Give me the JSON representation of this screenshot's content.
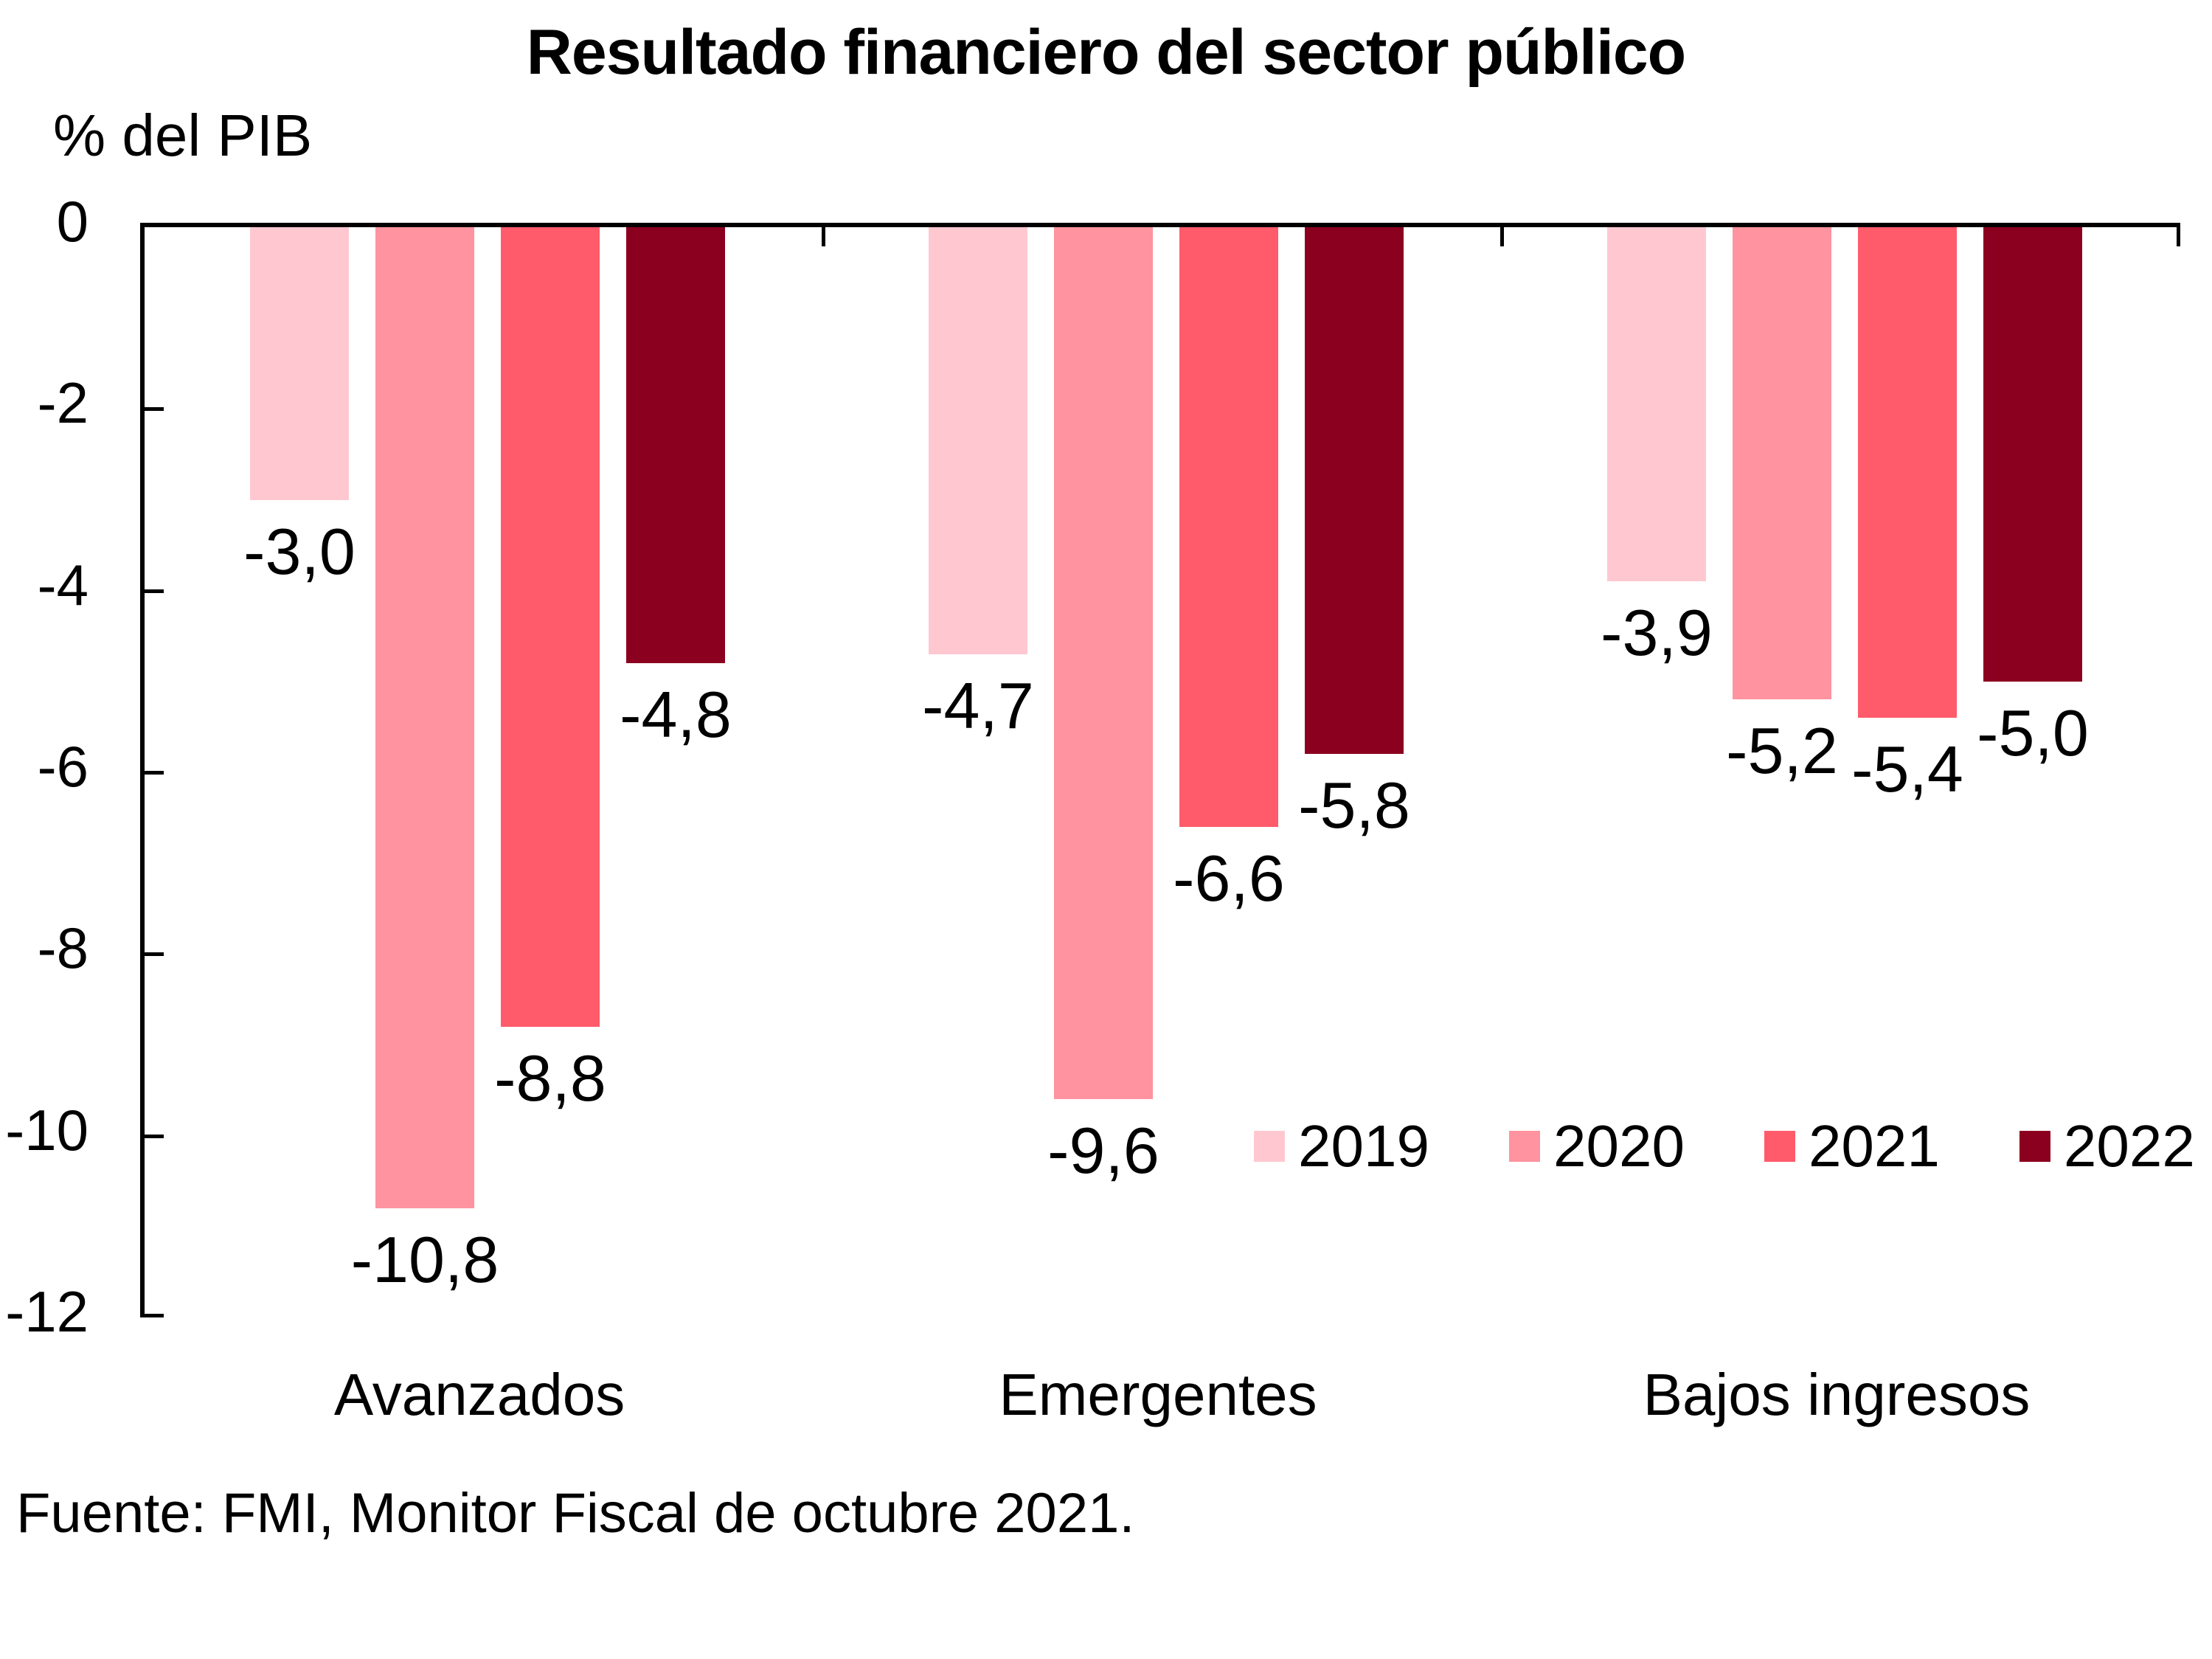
{
  "title": "Resultado financiero del sector público",
  "y_axis": {
    "label": "% del PIB",
    "ticks": [
      "0",
      "-2",
      "-4",
      "-6",
      "-8",
      "-10",
      "-12"
    ],
    "tick_values": [
      0,
      -2,
      -4,
      -6,
      -8,
      -10,
      -12
    ]
  },
  "footer": "Fuente: FMI, Monitor Fiscal de octubre 2021.",
  "chart_data": {
    "type": "bar",
    "title": "Resultado financiero del sector público",
    "ylabel": "% del PIB",
    "ylim": [
      -12,
      0
    ],
    "grid": false,
    "legend_position": "inside-bottom-right",
    "categories": [
      "Avanzados",
      "Emergentes",
      "Bajos ingresos"
    ],
    "series": [
      {
        "name": "2019",
        "color": "#FFC8D0",
        "values": [
          -3.0,
          -4.7,
          -3.9
        ],
        "value_labels": [
          "-3,0",
          "-4,7",
          "-3,9"
        ]
      },
      {
        "name": "2020",
        "color": "#FF939F",
        "values": [
          -10.8,
          -9.6,
          -5.2
        ],
        "value_labels": [
          "-10,8",
          "-9,6",
          "-5,2"
        ]
      },
      {
        "name": "2021",
        "color": "#FF5B6B",
        "values": [
          -8.8,
          -6.6,
          -5.4
        ],
        "value_labels": [
          "-8,8",
          "-6,6",
          "-5,4"
        ]
      },
      {
        "name": "2022",
        "color": "#8B001F",
        "values": [
          -4.8,
          -5.8,
          -5.0
        ],
        "value_labels": [
          "-4,8",
          "-5,8",
          "-5,0"
        ]
      }
    ]
  }
}
